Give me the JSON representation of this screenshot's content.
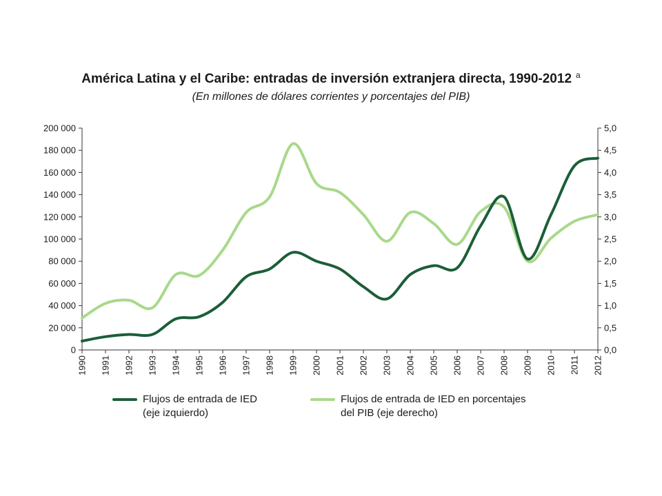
{
  "header": {
    "title": "América Latina y el Caribe: entradas de inversión extranjera directa, 1990-2012",
    "title_note": "a",
    "subtitle": "(En millones de dólares corrientes y porcentajes del PIB)"
  },
  "chart_data": {
    "type": "line",
    "x": [
      "1990",
      "1991",
      "1992",
      "1993",
      "1994",
      "1995",
      "1996",
      "1997",
      "1998",
      "1999",
      "2000",
      "2001",
      "2002",
      "2003",
      "2004",
      "2005",
      "2006",
      "2007",
      "2008",
      "2009",
      "2010",
      "2011",
      "2012"
    ],
    "left_axis": {
      "ylim": [
        0,
        200000
      ],
      "ticks": [
        "0",
        "20 000",
        "40 000",
        "60 000",
        "80 000",
        "100 000",
        "120 000",
        "140 000",
        "160 000",
        "180 000",
        "200 000"
      ]
    },
    "right_axis": {
      "ylim": [
        0,
        5
      ],
      "ticks": [
        "0,0",
        "0,5",
        "1,0",
        "1,5",
        "2,0",
        "2,5",
        "3,0",
        "3,5",
        "4,0",
        "4,5",
        "5,0"
      ]
    },
    "series": [
      {
        "name_lines": [
          "Flujos de entrada de IED",
          "(eje izquierdo)"
        ],
        "axis": "left",
        "color": "#1b5e38",
        "values": [
          8000,
          12000,
          14000,
          14000,
          28000,
          30000,
          43000,
          66000,
          73000,
          88000,
          80000,
          73000,
          57000,
          46000,
          68000,
          76000,
          74000,
          112000,
          138000,
          82000,
          122000,
          166000,
          173000
        ]
      },
      {
        "name_lines": [
          "Flujos de entrada de IED en porcentajes",
          "del PIB (eje derecho)"
        ],
        "axis": "right",
        "color": "#a8d98a",
        "values": [
          0.72,
          1.05,
          1.12,
          0.95,
          1.7,
          1.68,
          2.25,
          3.1,
          3.45,
          4.65,
          3.75,
          3.55,
          3.05,
          2.45,
          3.1,
          2.85,
          2.38,
          3.12,
          3.22,
          2.0,
          2.52,
          2.9,
          3.05
        ]
      }
    ],
    "grid": false,
    "legend": "bottom"
  }
}
